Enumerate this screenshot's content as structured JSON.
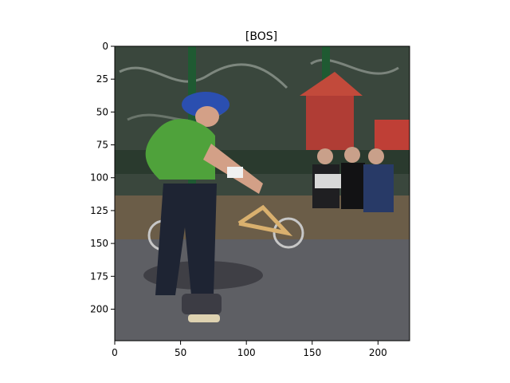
{
  "figure": {
    "title": "[BOS]"
  },
  "axes": {
    "x_ticks": [
      "0",
      "50",
      "100",
      "150",
      "200"
    ],
    "y_ticks": [
      "0",
      "25",
      "50",
      "75",
      "100",
      "125",
      "150",
      "175",
      "200"
    ],
    "xlim": [
      0,
      224
    ],
    "ylim": [
      224,
      0
    ]
  },
  "image": {
    "description": "",
    "colors": {
      "ground": "#5e5f64",
      "wall": "#3c4b3e",
      "jacket": "#4fa23b",
      "jeans": "#1e2433"
    }
  }
}
